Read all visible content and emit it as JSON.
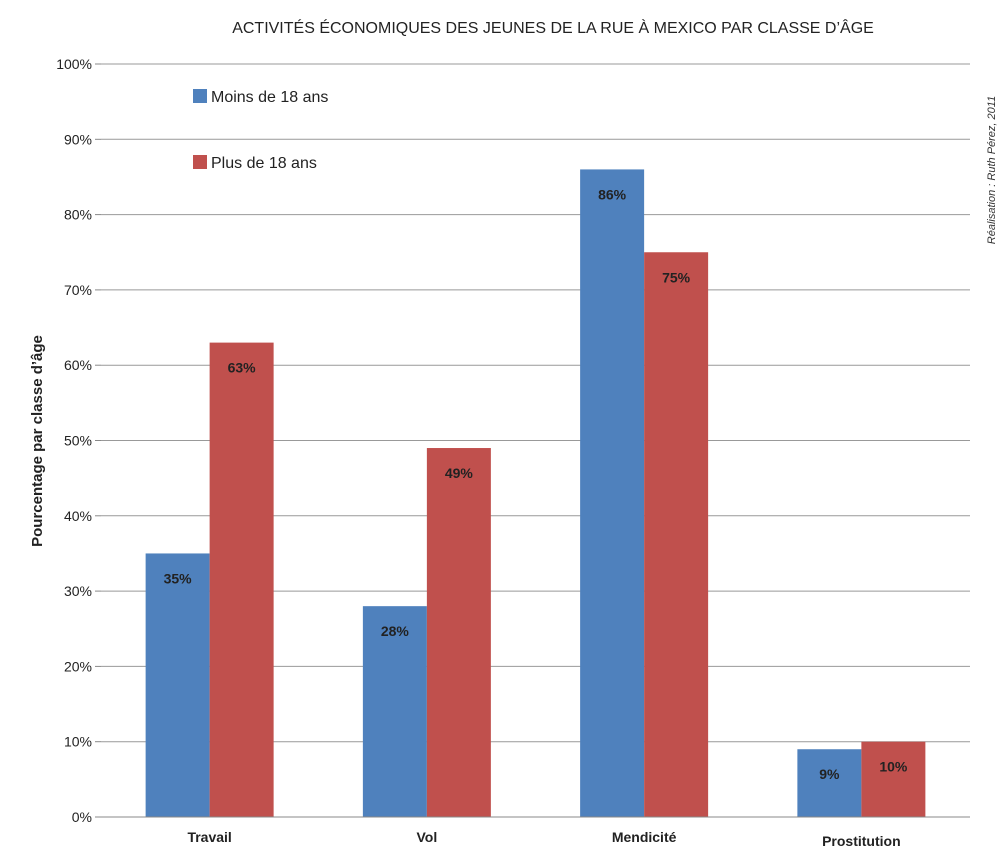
{
  "chart_data": {
    "type": "bar",
    "title": "ACTIVITÉS ÉCONOMIQUES DES JEUNES DE LA RUE À MEXICO PAR CLASSE D’ÂGE",
    "ylabel": "Pourcentage par classe d’âge",
    "xlabel": "",
    "categories": [
      "Travail",
      "Vol",
      "Mendicité",
      "Prostitution"
    ],
    "series": [
      {
        "name": "Moins de 18 ans",
        "color": "#4f81bd",
        "values": [
          35,
          28,
          86,
          9
        ],
        "labels": [
          "35%",
          "28%",
          "86%",
          "9%"
        ]
      },
      {
        "name": "Plus de 18 ans",
        "color": "#c0504d",
        "values": [
          63,
          49,
          75,
          10
        ],
        "labels": [
          "63%",
          "49%",
          "75%",
          "10%"
        ]
      }
    ],
    "ylim": [
      0,
      100
    ],
    "yticks": [
      "0%",
      "10%",
      "20%",
      "30%",
      "40%",
      "50%",
      "60%",
      "70%",
      "80%",
      "90%",
      "100%"
    ],
    "grid": true,
    "legend_position": "top-left",
    "credit": "Réalisation : Ruth Pérez, 2011"
  }
}
